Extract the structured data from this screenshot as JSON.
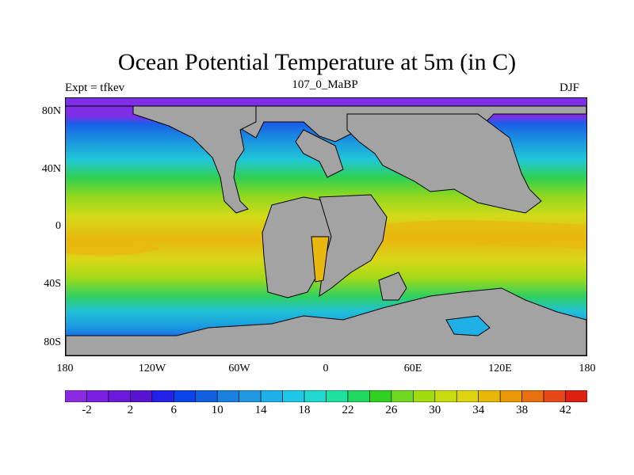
{
  "title": "Ocean Potential Temperature at 5m (in C)",
  "left_string": "Expt = tfkev",
  "center_string": "107_0_MaBP",
  "right_string": "DJF",
  "y_ticks": [
    "80N",
    "40N",
    "0",
    "40S",
    "80S"
  ],
  "x_ticks": [
    "180",
    "120W",
    "60W",
    "0",
    "60E",
    "120E",
    "180"
  ],
  "colorbar": {
    "labels": [
      "-2",
      "2",
      "6",
      "10",
      "14",
      "18",
      "22",
      "26",
      "30",
      "34",
      "38",
      "42"
    ],
    "colors": [
      "#8a2be2",
      "#7a20e0",
      "#6a1ad8",
      "#5a14d0",
      "#2222e8",
      "#0a44e8",
      "#1060e0",
      "#1a80e0",
      "#2098e0",
      "#20b0e8",
      "#20c8e8",
      "#20d8d0",
      "#20e0a0",
      "#20d860",
      "#30d020",
      "#70d820",
      "#a0dc10",
      "#c8dc10",
      "#e0d410",
      "#e8b808",
      "#e89808",
      "#e87010",
      "#e84818",
      "#e02010"
    ],
    "range": [
      -4,
      44
    ]
  },
  "colors": {
    "land": "#a3a3a3",
    "polar": "#7d2ee6",
    "coast": "#000000"
  }
}
